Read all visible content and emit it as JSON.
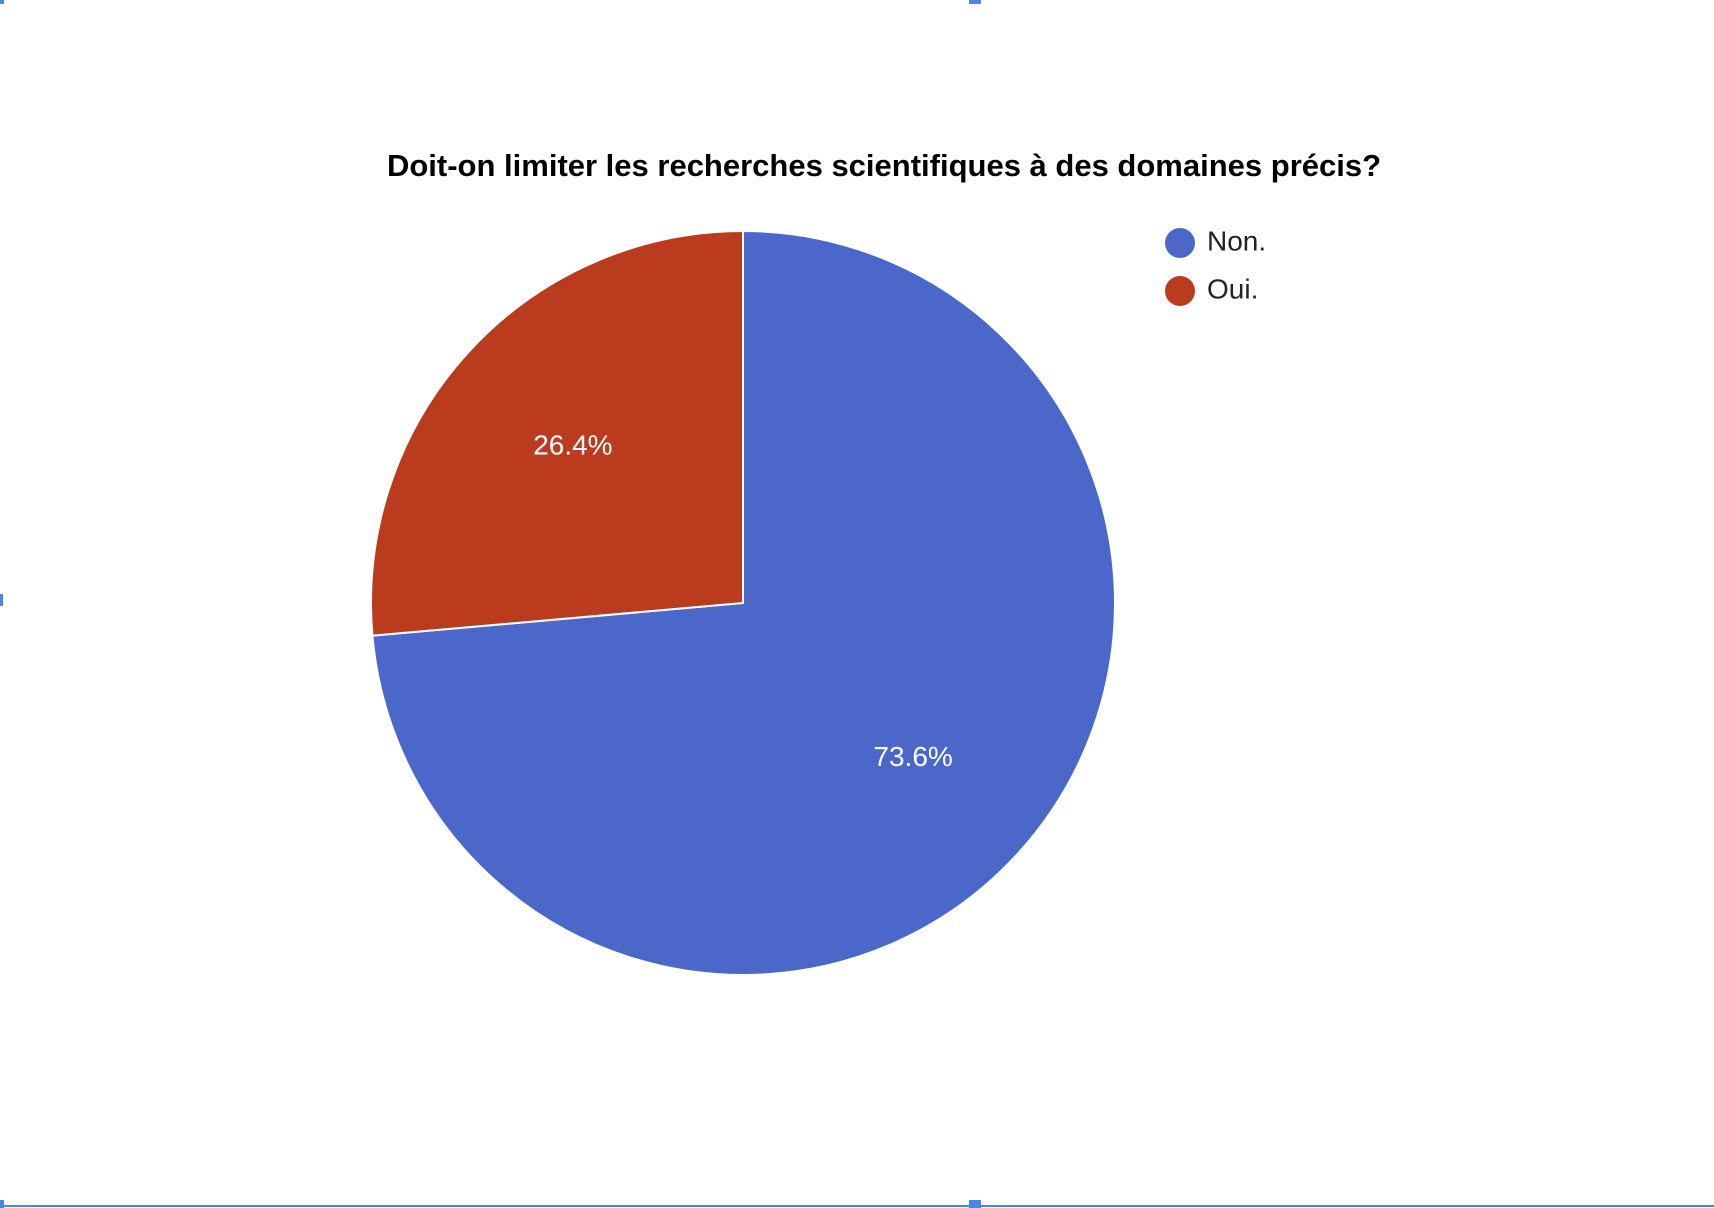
{
  "chart_data": {
    "type": "pie",
    "title": "Doit-on limiter les recherches scientifiques à des domaines précis?",
    "slices": [
      {
        "label": "Non.",
        "value": 73.6,
        "value_label": "73.6%",
        "color": "#4a67c9"
      },
      {
        "label": "Oui.",
        "value": 26.4,
        "value_label": "26.4%",
        "color": "#bb3b1f"
      }
    ],
    "legend_position": "top-right",
    "start_angle": "12 o'clock, clockwise"
  },
  "colors": {
    "background": "#ffffff",
    "selection_frame": "#4a86e8"
  }
}
